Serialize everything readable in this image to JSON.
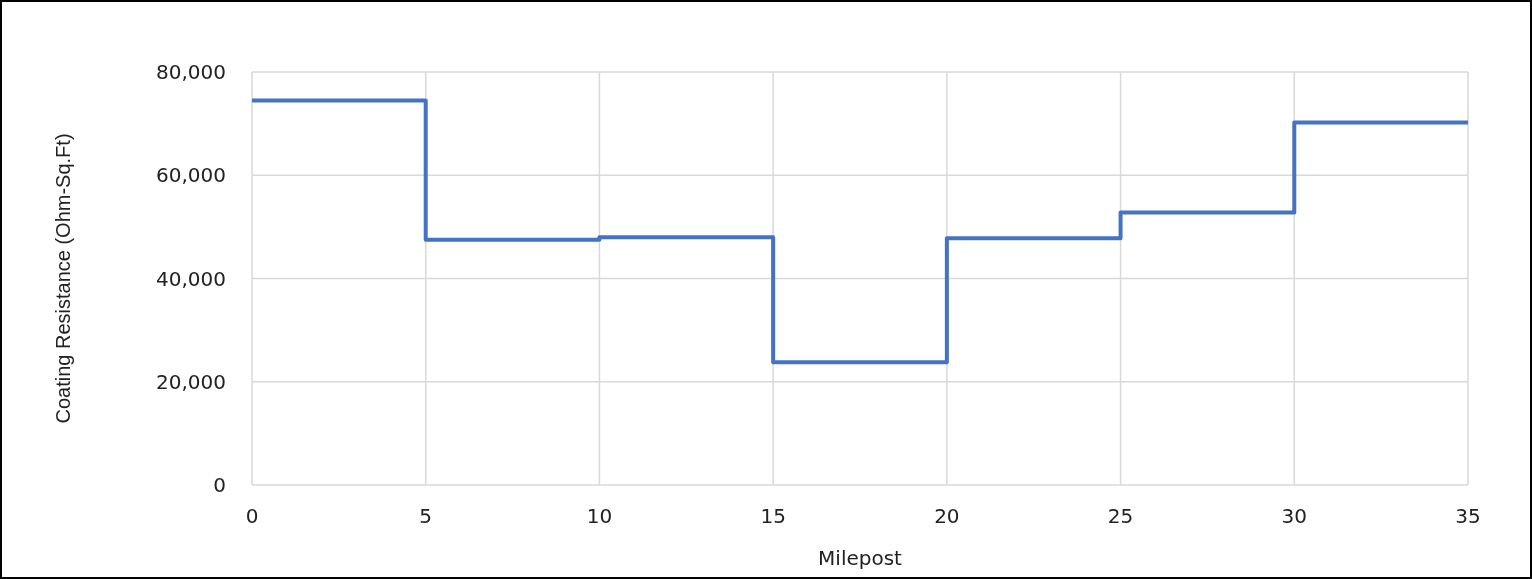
{
  "chart_data": {
    "type": "step",
    "xlabel": "Milepost",
    "ylabel": "Coating Resistance (Ohm-Sq.Ft)",
    "x": [
      0,
      5,
      10,
      15,
      20,
      25,
      30,
      35
    ],
    "series": [
      {
        "color": "#4472c4",
        "values": [
          74500,
          47500,
          48000,
          23800,
          47800,
          52800,
          70200,
          70200
        ]
      }
    ],
    "xlim": [
      0,
      35
    ],
    "xticks": [
      0,
      5,
      10,
      15,
      20,
      25,
      30,
      35
    ],
    "ylim": [
      0,
      80000
    ],
    "yticks": [
      {
        "value": 0,
        "label": "0"
      },
      {
        "value": 20000,
        "label": "20,000"
      },
      {
        "value": 40000,
        "label": "40,000"
      },
      {
        "value": 60000,
        "label": "60,000"
      },
      {
        "value": 80000,
        "label": "80,000"
      }
    ],
    "grid": true
  }
}
